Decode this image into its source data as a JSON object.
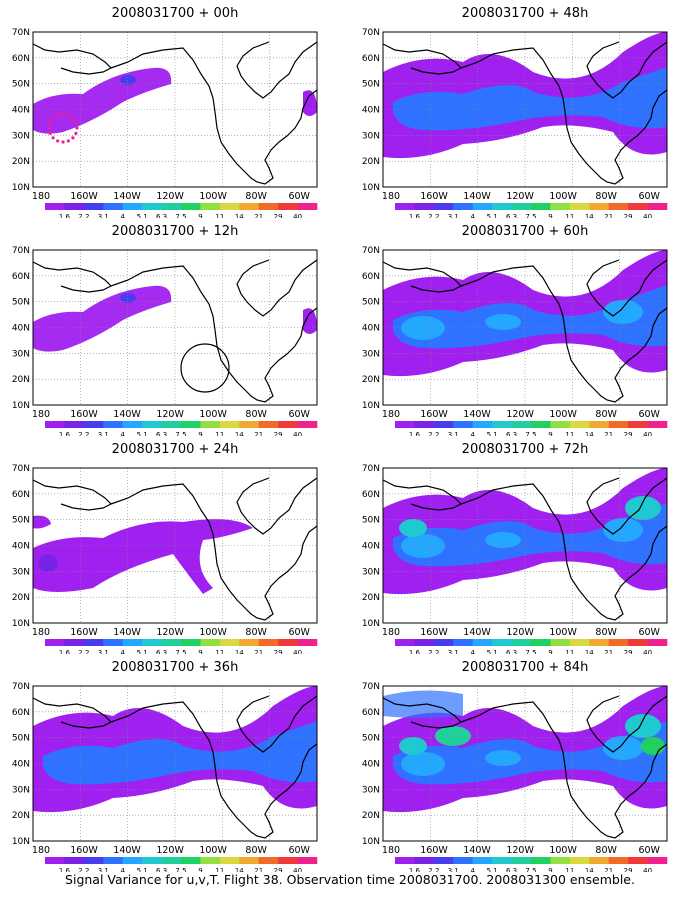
{
  "figure": {
    "caption": "Signal Variance for u,v,T. Flight 38. Observation time 2008031700. 2008031300 ensemble."
  },
  "axes": {
    "lat_labels": [
      "70N",
      "60N",
      "50N",
      "40N",
      "30N",
      "20N",
      "10N"
    ],
    "lon_labels": [
      "180",
      "160W",
      "140W",
      "120W",
      "100W",
      "80W",
      "60W"
    ]
  },
  "colorbar": {
    "labels": [
      "1.6",
      "2.2",
      "3.1",
      "4",
      "5.1",
      "6.3",
      "7.5",
      "9",
      "11",
      "14",
      "21",
      "29",
      "40"
    ],
    "colors": [
      "#a020f0",
      "#7a22e6",
      "#4a3af0",
      "#2f72ff",
      "#24a8ff",
      "#20c8d0",
      "#1fcf9e",
      "#20d060",
      "#90e040",
      "#d8d840",
      "#f0a830",
      "#f06a28",
      "#f03a3a",
      "#f0208c"
    ]
  },
  "panels": [
    {
      "title": "2008031700 + 00h",
      "marker": "dots",
      "level": 1
    },
    {
      "title": "2008031700 + 48h",
      "level": 3
    },
    {
      "title": "2008031700 + 12h",
      "marker": "circle",
      "level": 1
    },
    {
      "title": "2008031700 + 60h",
      "level": 4
    },
    {
      "title": "2008031700 + 24h",
      "level": 2
    },
    {
      "title": "2008031700 + 72h",
      "level": 5
    },
    {
      "title": "2008031700 + 36h",
      "level": 3
    },
    {
      "title": "2008031700 + 84h",
      "level": 6
    }
  ]
}
